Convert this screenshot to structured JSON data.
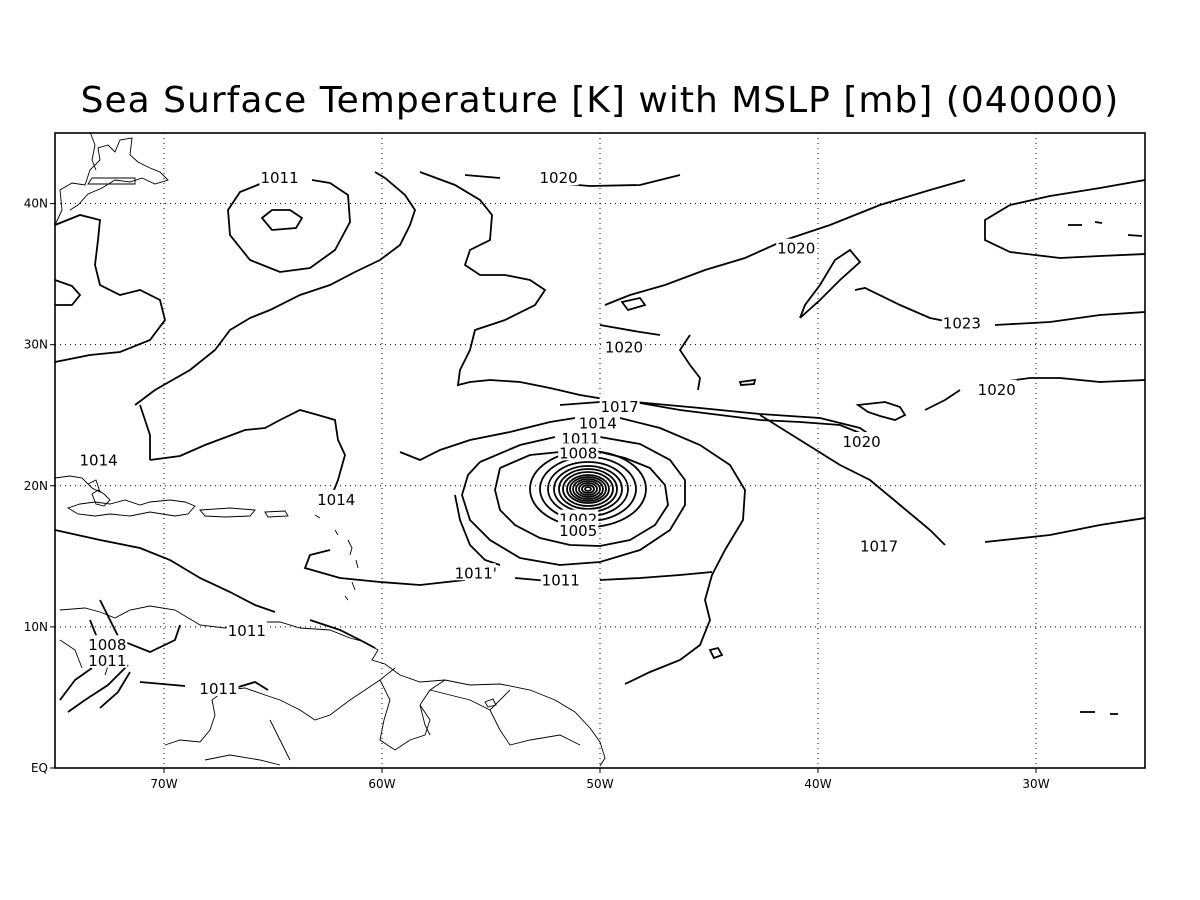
{
  "title": "Sea Surface Temperature [K] with MSLP [mb] (040000)",
  "map": {
    "lon_range": [
      -75,
      -25
    ],
    "lat_range": [
      0,
      45
    ],
    "lon_ticks": [
      {
        "value": -70,
        "label": "70W"
      },
      {
        "value": -60,
        "label": "60W"
      },
      {
        "value": -50,
        "label": "50W"
      },
      {
        "value": -40,
        "label": "40W"
      },
      {
        "value": -30,
        "label": "30W"
      }
    ],
    "lat_ticks": [
      {
        "value": 0,
        "label": "EQ"
      },
      {
        "value": 10,
        "label": "10N"
      },
      {
        "value": 20,
        "label": "20N"
      },
      {
        "value": 30,
        "label": "30N"
      },
      {
        "value": 40,
        "label": "40N"
      }
    ],
    "grid": "dotted",
    "contour_labels": [
      {
        "text": "1011",
        "lon": -64.7,
        "lat": 41.8
      },
      {
        "text": "1020",
        "lon": -51.9,
        "lat": 41.8
      },
      {
        "text": "1020",
        "lon": -41.0,
        "lat": 36.8
      },
      {
        "text": "1023",
        "lon": -33.4,
        "lat": 31.5
      },
      {
        "text": "1020",
        "lon": -48.9,
        "lat": 29.8
      },
      {
        "text": "1020",
        "lon": -31.8,
        "lat": 26.8
      },
      {
        "text": "1020",
        "lon": -38.0,
        "lat": 23.1
      },
      {
        "text": "1017",
        "lon": -49.1,
        "lat": 25.6
      },
      {
        "text": "1014",
        "lon": -50.1,
        "lat": 24.4
      },
      {
        "text": "1011",
        "lon": -50.9,
        "lat": 23.3
      },
      {
        "text": "1008",
        "lon": -51.0,
        "lat": 22.3
      },
      {
        "text": "1002",
        "lon": -51.0,
        "lat": 17.6
      },
      {
        "text": "1005",
        "lon": -51.0,
        "lat": 16.8
      },
      {
        "text": "1017",
        "lon": -37.2,
        "lat": 15.7
      },
      {
        "text": "1011'",
        "lon": -55.7,
        "lat": 13.8
      },
      {
        "text": "1011",
        "lon": -51.8,
        "lat": 13.3
      },
      {
        "text": "1014",
        "lon": -73.0,
        "lat": 21.8
      },
      {
        "text": "1014",
        "lon": -62.1,
        "lat": 19.0
      },
      {
        "text": "1011",
        "lon": -66.2,
        "lat": 9.7
      },
      {
        "text": "1011",
        "lon": -72.6,
        "lat": 7.6
      },
      {
        "text": "1008",
        "lon": -72.6,
        "lat": 8.7
      },
      {
        "text": "1011",
        "lon": -67.5,
        "lat": 5.6
      }
    ]
  }
}
